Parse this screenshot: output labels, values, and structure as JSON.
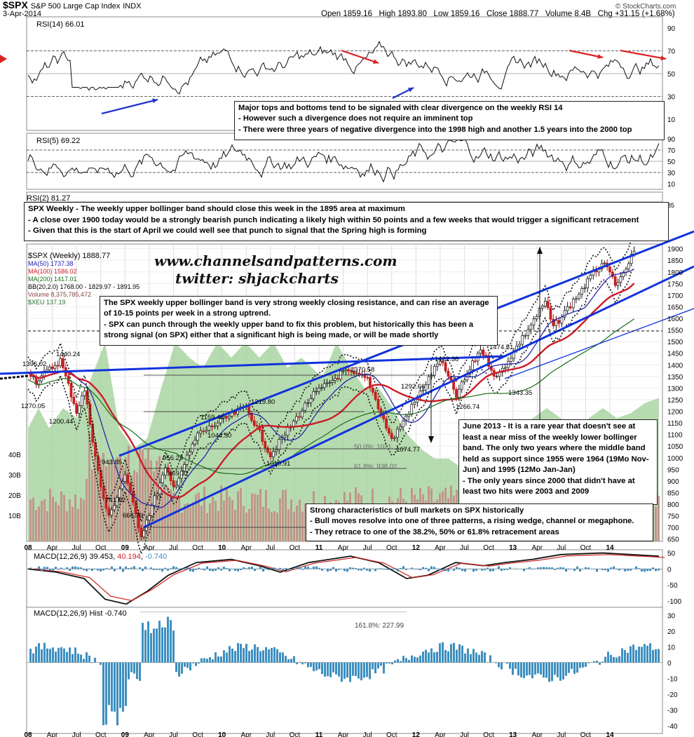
{
  "header": {
    "symbol": "$SPX",
    "name": "S&P 500 Large Cap Index",
    "exchange": "INDX",
    "date": "3-Apr-2014",
    "open_label": "Open",
    "open": "1859.16",
    "high_label": "High",
    "high": "1893.80",
    "low_label": "Low",
    "low": "1859.16",
    "close_label": "Close",
    "close": "1888.77",
    "volume_label": "Volume",
    "volume": "8.4B",
    "chg_label": "Chg",
    "chg": "+31.15 (+1.68%)",
    "brand": "© StockCharts.com"
  },
  "panels": {
    "rsi14_label": "RSI(14) 66.01",
    "rsi5_label": "RSI(5) 69.22",
    "rsi2_label": "RSI(2) 81.27",
    "macd_label": "MACD(12,26,9)",
    "macd_vals": [
      "39.453",
      "40.194",
      "-0.740"
    ],
    "hist_label": "MACD(12,26,9) Hist -0.740",
    "fib_hist": "161.8%: 227.99"
  },
  "legend": [
    "$SPX (Weekly) 1888.77",
    "MA(50) 1737.38",
    "MA(100) 1586.02",
    "MA(200) 1417.01",
    "BB(20,2.0) 1768.00 - 1829.97 - 1891.95",
    "Volume 8,375,785,472",
    "$XEU 137.19"
  ],
  "colors": {
    "ma50": "#1a1aa8",
    "ma100": "#cc1c28",
    "ma200": "#1a6e1a",
    "channel": "#1133dd",
    "xeu": "#9fcf95",
    "volume": "#c28a85",
    "rsi_fill_high": "#5a7a5a",
    "rsi_fill_low": "#a07070",
    "hist": "#3d8fbf",
    "macd_signal": "#cc2222"
  },
  "watermark": [
    "www.channelsandpatterns.com",
    "twitter: shjackcharts"
  ],
  "notes": {
    "rsi_note": [
      "Major tops and bottoms tend to be signaled with clear divergence on the weekly RSI 14",
      "- However such a divergence does not require an imminent top",
      "- There were three years of negative divergence into the 1998 high and another 1.5 years into the 2000 top"
    ],
    "weekly_note": [
      "SPX Weekly - The weekly upper bollinger band should close this week in the 1895 area at maximum",
      "- A close over 1900 today would be a strongly bearish punch indicating a likely high within 50 points and a few weeks that would trigger a significant retracement",
      "- Given that this is the start of April we could well see that punch to signal that the Spring high is forming"
    ],
    "bb_note": [
      "The SPX weekly upper bollinger band is very strong weekly closing resistance, and can rise an average of 10-15 points per week in a strong uptrend.",
      "- SPX can punch through the weekly upper band to fix this problem, but historically this has been a strong signal (on SPX) either that a significant high is being made, or will be made shortly"
    ],
    "june_note": [
      "June 2013 - It is a rare year that doesn't see at least a near miss of the weekly lower bollinger band. The only two years where the middle band held as support since 1955 were 1964 (19Mo Nov-Jun) and 1995 (12Mo Jan-Jan)",
      "- The only years since 2000 that didn't have at least two hits were 2003 and 2009"
    ],
    "bull_note": [
      "Strong characteristics of bull markets on SPX historically",
      "- Bull moves resolve into one of three patterns, a rising wedge, channel or megaphone.",
      "- They retrace to one of the 38.2%, 50% or 61.8% retracement areas"
    ]
  },
  "price_labels": [
    "1440.24",
    "1396.02",
    "1270.05",
    "1200.44",
    "943.85",
    "741.02",
    "666.79",
    "956.23",
    "869.32",
    "1159.46",
    "1044.50",
    "1219.80",
    "1010.91",
    "1370.58",
    "1292.66",
    "1074.77",
    "1422.38",
    "1266.74",
    "1474.51",
    "1343.35"
  ],
  "fib_labels": [
    "50.0%: 1021.",
    "61.8%: 938.02"
  ],
  "volume_ticks": [
    "40B",
    "30B",
    "20B",
    "10B"
  ],
  "chart_data": {
    "type": "line",
    "title": "$SPX S&P 500 Large Cap Index INDX",
    "x_ticks": [
      "08",
      "Apr",
      "Jul",
      "Oct",
      "09",
      "Apr",
      "Jul",
      "Oct",
      "10",
      "Apr",
      "Jul",
      "Oct",
      "11",
      "Apr",
      "Jul",
      "Oct",
      "12",
      "Apr",
      "Jul",
      "Oct",
      "13",
      "Apr",
      "Jul",
      "Oct",
      "14"
    ],
    "price_ticks": [
      "1900",
      "1850",
      "1800",
      "1750",
      "1700",
      "1650",
      "1600",
      "1550",
      "1500",
      "1450",
      "1400",
      "1350",
      "1300",
      "1250",
      "1200",
      "1150",
      "1100",
      "1050",
      "1000",
      "950",
      "900",
      "850",
      "800",
      "750",
      "700",
      "650"
    ],
    "rsi14_ticks": [
      "90",
      "70",
      "50",
      "30",
      "10"
    ],
    "rsi5_ticks": [
      "90",
      "70",
      "50",
      "30",
      "10"
    ],
    "macd_ticks": [
      "50",
      "0",
      "-50",
      "-100"
    ],
    "hist_ticks": [
      "30",
      "20",
      "10",
      "0",
      "-10",
      "-20",
      "-30",
      "-40"
    ],
    "price_pivots": [
      {
        "x": "08",
        "y": 1380
      },
      {
        "x": "Feb-08",
        "y": 1330
      },
      {
        "x": "May-08",
        "y": 1420
      },
      {
        "x": "Jul-08",
        "y": 1200
      },
      {
        "x": "Aug-08",
        "y": 1290
      },
      {
        "x": "Oct-08",
        "y": 870
      },
      {
        "x": "Nov-08",
        "y": 741
      },
      {
        "x": "Jan-09",
        "y": 930
      },
      {
        "x": "Mar-09",
        "y": 667
      },
      {
        "x": "Jun-09",
        "y": 950
      },
      {
        "x": "Jul-09",
        "y": 870
      },
      {
        "x": "Oct-09",
        "y": 1100
      },
      {
        "x": "Apr-10",
        "y": 1220
      },
      {
        "x": "Jul-10",
        "y": 1011
      },
      {
        "x": "Dec-10",
        "y": 1260
      },
      {
        "x": "Apr-11",
        "y": 1370
      },
      {
        "x": "Jul-11",
        "y": 1340
      },
      {
        "x": "Oct-11",
        "y": 1075
      },
      {
        "x": "Apr-12",
        "y": 1422
      },
      {
        "x": "Jun-12",
        "y": 1267
      },
      {
        "x": "Sep-12",
        "y": 1470
      },
      {
        "x": "Nov-12",
        "y": 1343
      },
      {
        "x": "May-13",
        "y": 1670
      },
      {
        "x": "Jun-13",
        "y": 1560
      },
      {
        "x": "Dec-13",
        "y": 1840
      },
      {
        "x": "Feb-14",
        "y": 1740
      },
      {
        "x": "Apr-14",
        "y": 1889
      }
    ],
    "ylim_price": [
      640,
      1920
    ],
    "log_scale": false,
    "grid": true,
    "legend_position": "top-left"
  }
}
